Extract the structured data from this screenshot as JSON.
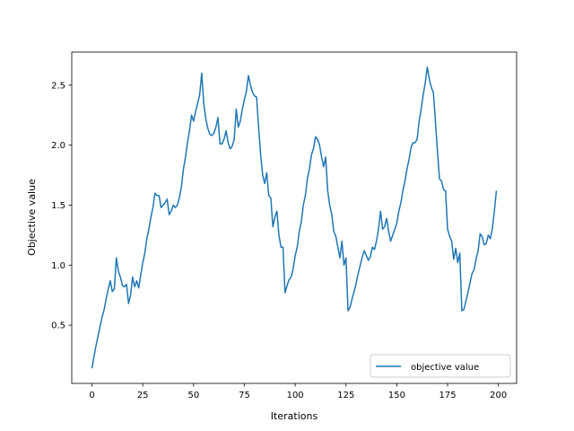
{
  "chart_data": {
    "type": "line",
    "xlabel": "Iterations",
    "ylabel": "Objective value",
    "x": [
      0,
      1,
      2,
      3,
      4,
      5,
      6,
      7,
      8,
      9,
      10,
      11,
      12,
      13,
      14,
      15,
      16,
      17,
      18,
      19,
      20,
      21,
      22,
      23,
      24,
      25,
      26,
      27,
      28,
      29,
      30,
      31,
      32,
      33,
      34,
      35,
      36,
      37,
      38,
      39,
      40,
      41,
      42,
      43,
      44,
      45,
      46,
      47,
      48,
      49,
      50,
      51,
      52,
      53,
      54,
      55,
      56,
      57,
      58,
      59,
      60,
      61,
      62,
      63,
      64,
      65,
      66,
      67,
      68,
      69,
      70,
      71,
      72,
      73,
      74,
      75,
      76,
      77,
      78,
      79,
      80,
      81,
      82,
      83,
      84,
      85,
      86,
      87,
      88,
      89,
      90,
      91,
      92,
      93,
      94,
      95,
      96,
      97,
      98,
      99,
      100,
      101,
      102,
      103,
      104,
      105,
      106,
      107,
      108,
      109,
      110,
      111,
      112,
      113,
      114,
      115,
      116,
      117,
      118,
      119,
      120,
      121,
      122,
      123,
      124,
      125,
      126,
      127,
      128,
      129,
      130,
      131,
      132,
      133,
      134,
      135,
      136,
      137,
      138,
      139,
      140,
      141,
      142,
      143,
      144,
      145,
      146,
      147,
      148,
      149,
      150,
      151,
      152,
      153,
      154,
      155,
      156,
      157,
      158,
      159,
      160,
      161,
      162,
      163,
      164,
      165,
      166,
      167,
      168,
      169,
      170,
      171,
      172,
      173,
      174,
      175,
      176,
      177,
      178,
      179,
      180,
      181,
      182,
      183,
      184,
      185,
      186,
      187,
      188,
      189,
      190,
      191,
      192,
      193,
      194,
      195,
      196,
      197,
      198,
      199
    ],
    "series": [
      {
        "name": "objective value",
        "color": "#1f77b4",
        "values": [
          0.14,
          0.24,
          0.33,
          0.41,
          0.49,
          0.57,
          0.63,
          0.72,
          0.8,
          0.87,
          0.78,
          0.8,
          1.06,
          0.95,
          0.9,
          0.83,
          0.82,
          0.84,
          0.68,
          0.75,
          0.9,
          0.82,
          0.87,
          0.81,
          0.92,
          1.02,
          1.1,
          1.22,
          1.3,
          1.4,
          1.48,
          1.6,
          1.58,
          1.58,
          1.48,
          1.5,
          1.52,
          1.55,
          1.42,
          1.45,
          1.5,
          1.48,
          1.5,
          1.56,
          1.65,
          1.8,
          1.9,
          2.02,
          2.12,
          2.25,
          2.2,
          2.28,
          2.35,
          2.42,
          2.6,
          2.35,
          2.22,
          2.14,
          2.09,
          2.08,
          2.1,
          2.15,
          2.23,
          2.01,
          2.01,
          2.05,
          2.12,
          2.02,
          1.97,
          1.99,
          2.05,
          2.3,
          2.15,
          2.2,
          2.3,
          2.38,
          2.45,
          2.58,
          2.5,
          2.44,
          2.41,
          2.4,
          2.15,
          1.92,
          1.75,
          1.68,
          1.77,
          1.58,
          1.56,
          1.32,
          1.4,
          1.45,
          1.25,
          1.15,
          1.15,
          0.77,
          0.83,
          0.88,
          0.9,
          0.97,
          1.08,
          1.15,
          1.28,
          1.36,
          1.5,
          1.58,
          1.72,
          1.8,
          1.92,
          1.97,
          2.07,
          2.05,
          2.0,
          1.9,
          1.82,
          1.9,
          1.62,
          1.5,
          1.42,
          1.28,
          1.24,
          1.15,
          1.06,
          1.2,
          1.0,
          1.06,
          0.62,
          0.65,
          0.72,
          0.78,
          0.85,
          0.93,
          1.0,
          1.07,
          1.12,
          1.08,
          1.04,
          1.07,
          1.15,
          1.13,
          1.2,
          1.3,
          1.45,
          1.3,
          1.32,
          1.39,
          1.28,
          1.2,
          1.25,
          1.3,
          1.35,
          1.45,
          1.52,
          1.62,
          1.7,
          1.8,
          1.88,
          1.98,
          2.02,
          2.02,
          2.05,
          2.2,
          2.3,
          2.42,
          2.52,
          2.65,
          2.55,
          2.48,
          2.44,
          2.2,
          1.95,
          1.72,
          1.7,
          1.63,
          1.62,
          1.3,
          1.24,
          1.2,
          1.05,
          1.14,
          1.02,
          1.1,
          0.62,
          0.63,
          0.7,
          0.77,
          0.85,
          0.93,
          0.96,
          1.05,
          1.12,
          1.26,
          1.24,
          1.17,
          1.18,
          1.25,
          1.22,
          1.3,
          1.45,
          1.62
        ]
      }
    ],
    "xlim": [
      -9.95,
      208.95
    ],
    "xticks": [
      0,
      25,
      50,
      75,
      100,
      125,
      150,
      175,
      200
    ],
    "ylim": [
      0.0145,
      2.7755
    ],
    "yticks": [
      0.5,
      {
        "value": 1,
        "label": "1.0"
      },
      1.5,
      {
        "value": 2,
        "label": "2.0"
      },
      2.5
    ],
    "legend": "lower right"
  }
}
